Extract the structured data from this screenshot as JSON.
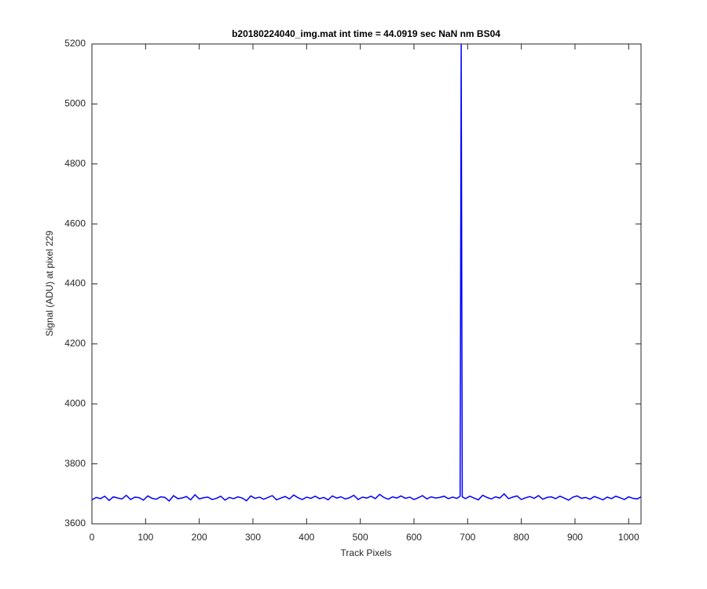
{
  "chart_data": {
    "type": "line",
    "title": "b20180224040_img.mat int time = 44.0919 sec  NaN nm BS04",
    "x_label": "Track Pixels",
    "y_label": "Signal (ADU) at pixel 229",
    "x": [
      0,
      8,
      16,
      24,
      32,
      40,
      48,
      56,
      64,
      72,
      80,
      88,
      96,
      104,
      112,
      120,
      128,
      136,
      144,
      152,
      160,
      168,
      176,
      184,
      192,
      200,
      208,
      216,
      224,
      232,
      240,
      248,
      256,
      264,
      272,
      280,
      288,
      296,
      304,
      312,
      320,
      328,
      336,
      344,
      352,
      360,
      368,
      376,
      384,
      392,
      400,
      408,
      416,
      424,
      432,
      440,
      448,
      456,
      464,
      472,
      480,
      488,
      496,
      504,
      512,
      520,
      528,
      536,
      544,
      552,
      560,
      568,
      576,
      584,
      592,
      600,
      608,
      616,
      624,
      632,
      640,
      648,
      656,
      664,
      672,
      680,
      686,
      688,
      690,
      696,
      704,
      712,
      720,
      728,
      736,
      744,
      752,
      760,
      768,
      776,
      784,
      792,
      800,
      808,
      816,
      824,
      832,
      840,
      848,
      856,
      864,
      872,
      880,
      888,
      896,
      904,
      912,
      920,
      928,
      936,
      944,
      952,
      960,
      968,
      976,
      984,
      992,
      1000,
      1008,
      1016,
      1023
    ],
    "series": [
      {
        "name": "signal",
        "color": "#0000ff",
        "values": [
          3680,
          3688,
          3684,
          3692,
          3678,
          3690,
          3686,
          3683,
          3695,
          3681,
          3689,
          3687,
          3679,
          3693,
          3685,
          3682,
          3690,
          3688,
          3676,
          3694,
          3684,
          3686,
          3691,
          3680,
          3697,
          3683,
          3687,
          3689,
          3681,
          3685,
          3692,
          3679,
          3688,
          3684,
          3690,
          3686,
          3677,
          3693,
          3685,
          3689,
          3682,
          3688,
          3694,
          3680,
          3686,
          3691,
          3683,
          3696,
          3687,
          3681,
          3689,
          3685,
          3692,
          3684,
          3688,
          3680,
          3693,
          3686,
          3690,
          3683,
          3687,
          3695,
          3681,
          3689,
          3686,
          3692,
          3684,
          3698,
          3688,
          3682,
          3690,
          3686,
          3693,
          3685,
          3689,
          3681,
          3687,
          3694,
          3683,
          3690,
          3686,
          3688,
          3692,
          3684,
          3689,
          3685,
          3692,
          5200,
          3690,
          3684,
          3692,
          3686,
          3680,
          3695,
          3688,
          3683,
          3690,
          3686,
          3700,
          3684,
          3689,
          3693,
          3681,
          3687,
          3691,
          3685,
          3694,
          3682,
          3688,
          3690,
          3684,
          3692,
          3686,
          3679,
          3689,
          3693,
          3685,
          3688,
          3682,
          3691,
          3686,
          3680,
          3689,
          3684,
          3692,
          3687,
          3681,
          3690,
          3685,
          3683,
          3690
        ]
      }
    ],
    "xlim": [
      0,
      1023
    ],
    "ylim": [
      3600,
      5200
    ],
    "xticks": [
      0,
      100,
      200,
      300,
      400,
      500,
      600,
      700,
      800,
      900,
      1000
    ],
    "yticks": [
      3600,
      3800,
      4000,
      4200,
      4400,
      4600,
      4800,
      5000,
      5200
    ],
    "grid": false
  }
}
